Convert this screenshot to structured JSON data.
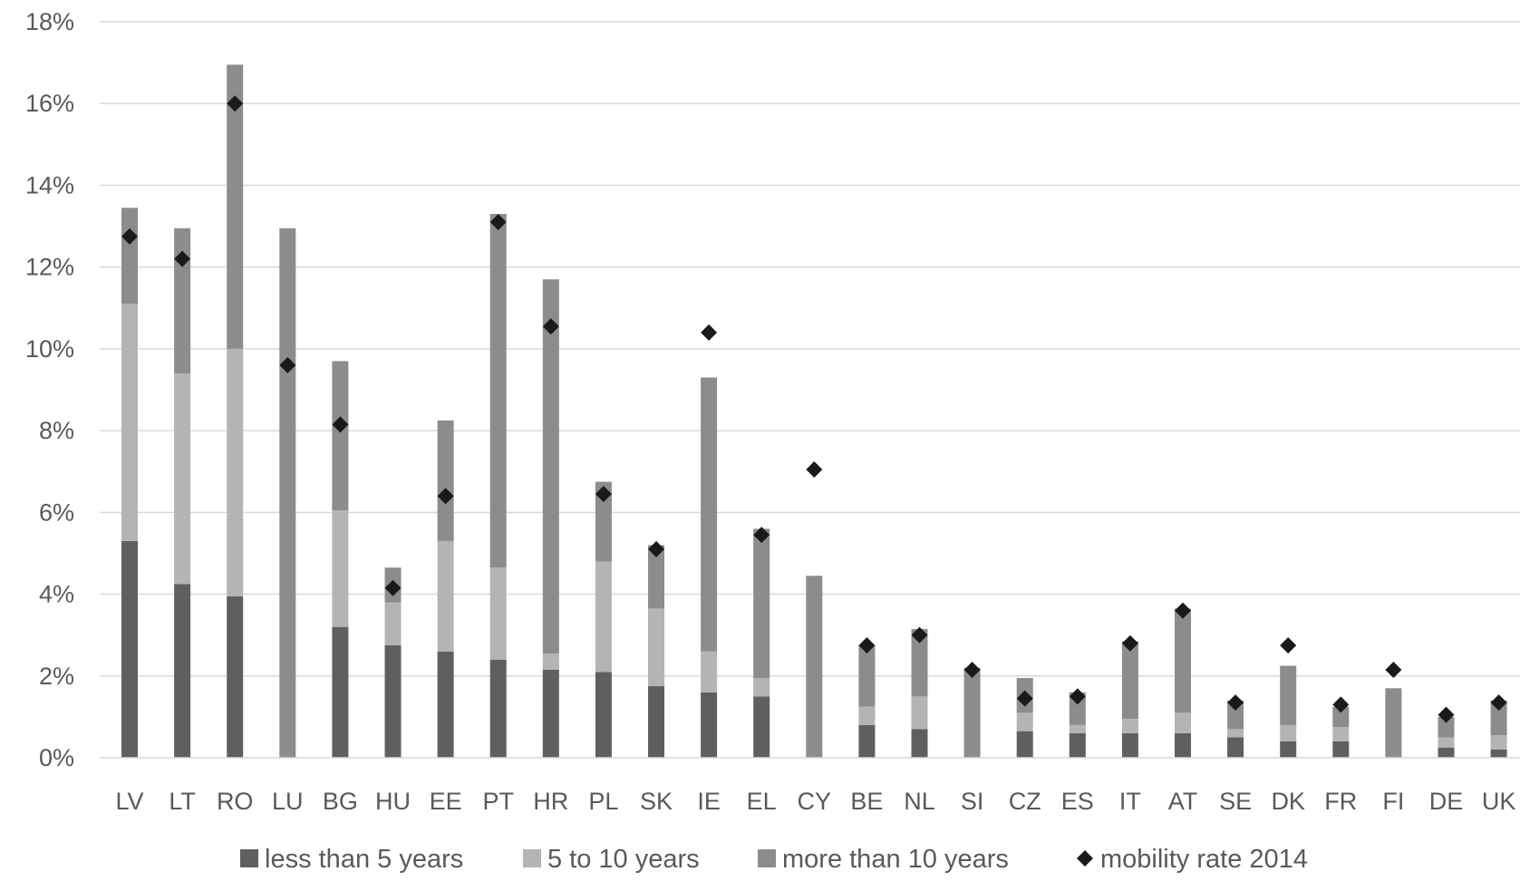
{
  "chart_data": {
    "type": "bar",
    "stacked": true,
    "categories": [
      "LV",
      "LT",
      "RO",
      "LU",
      "BG",
      "HU",
      "EE",
      "PT",
      "HR",
      "PL",
      "SK",
      "IE",
      "EL",
      "CY",
      "BE",
      "NL",
      "SI",
      "CZ",
      "ES",
      "IT",
      "AT",
      "SE",
      "DK",
      "FR",
      "FI",
      "DE",
      "UK"
    ],
    "series": [
      {
        "name": "less than 5 years",
        "color": "#5f5f5f",
        "values": [
          5.3,
          4.25,
          3.95,
          0,
          3.2,
          2.75,
          2.6,
          2.4,
          2.15,
          2.1,
          1.75,
          1.6,
          1.5,
          0,
          0.8,
          0.7,
          0,
          0.65,
          0.6,
          0.6,
          0.6,
          0.5,
          0.4,
          0.4,
          0,
          0.25,
          0.2
        ]
      },
      {
        "name": "5 to 10 years",
        "color": "#b4b4b4",
        "values": [
          5.8,
          5.15,
          6.05,
          0,
          2.85,
          1.05,
          2.7,
          2.25,
          0.4,
          2.7,
          1.9,
          1.0,
          0.45,
          0,
          0.45,
          0.8,
          0,
          0.45,
          0.2,
          0.35,
          0.5,
          0.2,
          0.4,
          0.35,
          0,
          0.25,
          0.35
        ]
      },
      {
        "name": "more than 10 years",
        "color": "#8c8c8c",
        "values": [
          2.35,
          3.55,
          6.95,
          12.95,
          3.65,
          0.85,
          2.95,
          8.65,
          9.15,
          1.95,
          1.55,
          6.7,
          3.65,
          4.45,
          1.5,
          1.65,
          2.2,
          0.85,
          0.8,
          1.9,
          2.55,
          0.7,
          1.45,
          0.5,
          1.7,
          0.5,
          0.85
        ]
      }
    ],
    "markers": {
      "name": "mobility rate 2014",
      "symbol": "diamond",
      "color": "#1a1a1a",
      "values": [
        12.75,
        12.2,
        16.0,
        9.6,
        8.15,
        4.15,
        6.4,
        13.1,
        10.55,
        6.45,
        5.1,
        10.4,
        5.45,
        7.05,
        2.75,
        3.0,
        2.15,
        1.45,
        1.5,
        2.8,
        3.6,
        1.35,
        2.75,
        1.3,
        2.15,
        1.05,
        1.35
      ]
    },
    "ylim": [
      0,
      18
    ],
    "yticks": [
      0,
      2,
      4,
      6,
      8,
      10,
      12,
      14,
      16,
      18
    ],
    "ytick_labels": [
      "0%",
      "2%",
      "4%",
      "6%",
      "8%",
      "10%",
      "12%",
      "14%",
      "16%",
      "18%"
    ],
    "grid": true,
    "legend_position": "bottom",
    "title": "",
    "xlabel": "",
    "ylabel": ""
  }
}
